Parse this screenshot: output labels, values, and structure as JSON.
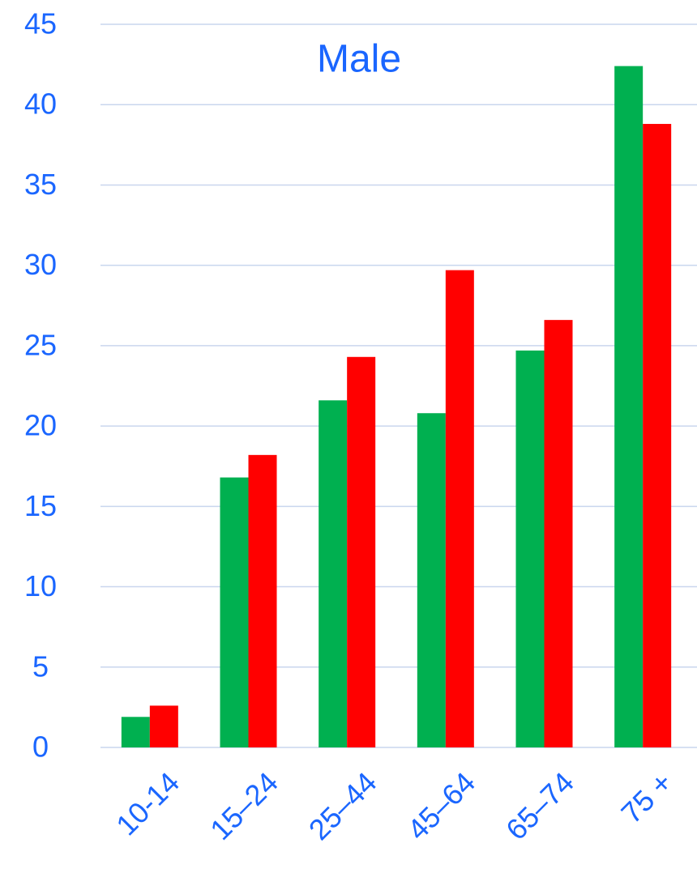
{
  "chart_data": {
    "type": "bar",
    "title": "Male",
    "categories": [
      "10-14",
      "15–24",
      "25–44",
      "45–64",
      "65–74",
      "75 +"
    ],
    "series": [
      {
        "color": "#00b050",
        "values": [
          1.9,
          16.8,
          21.6,
          20.8,
          24.7,
          42.4
        ]
      },
      {
        "color": "#ff0000",
        "values": [
          2.6,
          18.2,
          24.3,
          29.7,
          26.6,
          38.8
        ]
      }
    ],
    "ylim": [
      0,
      45
    ],
    "yticks": [
      0,
      5,
      10,
      15,
      20,
      25,
      30,
      35,
      40,
      45
    ],
    "grid": true
  }
}
